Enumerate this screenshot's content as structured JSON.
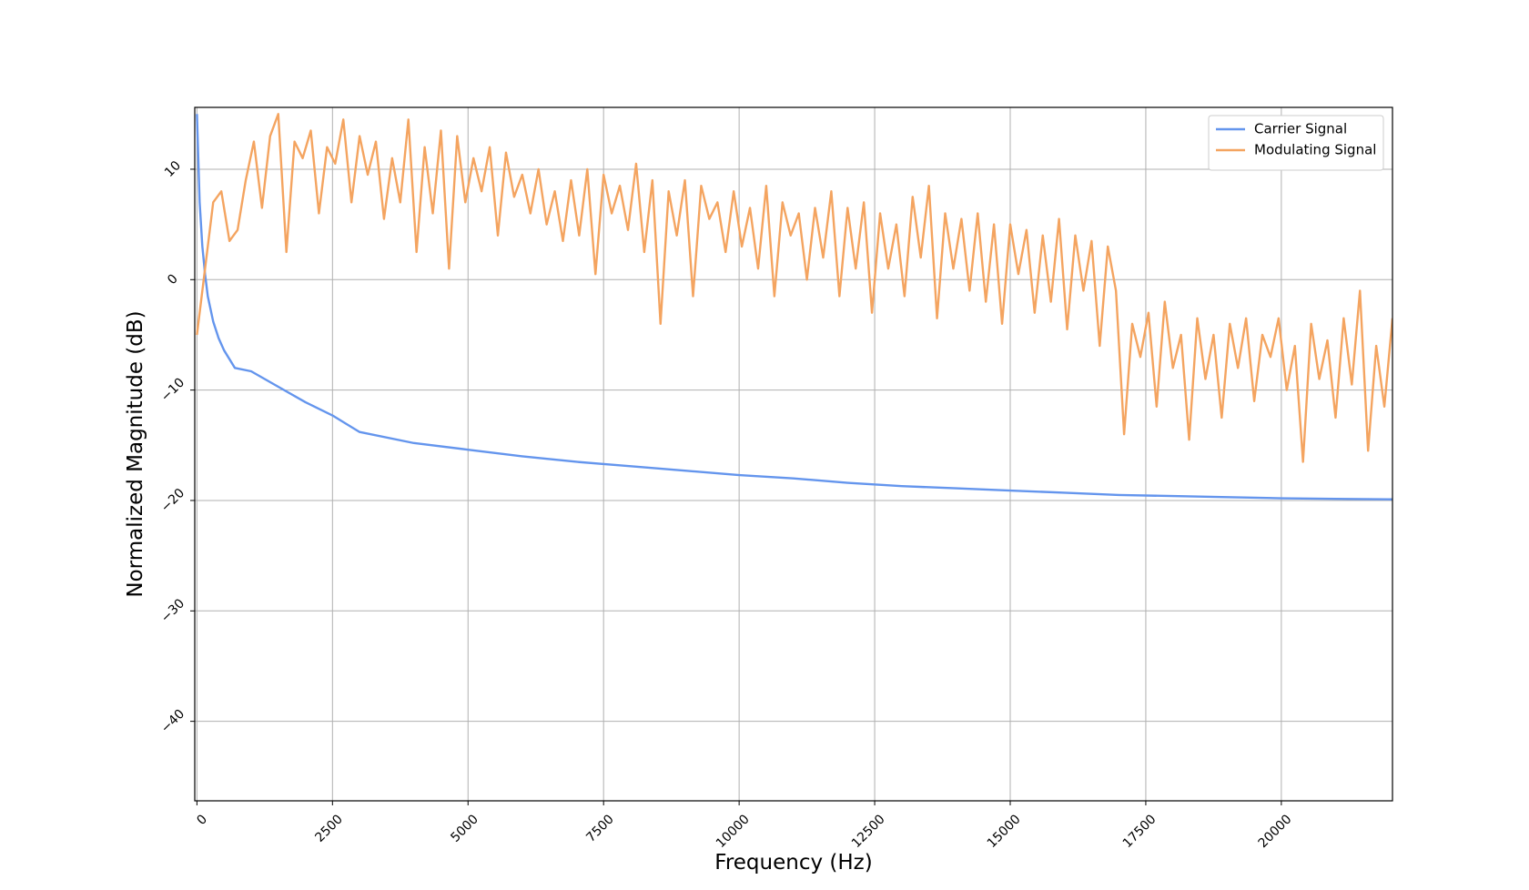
{
  "chart_data": {
    "type": "line",
    "x_label": "Frequency (Hz)",
    "y_label": "Normalized Magnitude (dB)",
    "xlim": [
      -40,
      22050
    ],
    "ylim": [
      -47.2,
      15.6
    ],
    "xticks": [
      0,
      2500,
      5000,
      7500,
      10000,
      12500,
      15000,
      17500,
      20000
    ],
    "yticks": [
      {
        "value": -40,
        "label": "−40"
      },
      {
        "value": -30,
        "label": "−30"
      },
      {
        "value": -20,
        "label": "−20"
      },
      {
        "value": -10,
        "label": "−10"
      },
      0,
      10
    ],
    "grid": true,
    "legend": "upper right",
    "series": [
      {
        "name": "Carrier Signal",
        "color": "#6495ed",
        "x": [
          0,
          50,
          100,
          150,
          200,
          300,
          400,
          500,
          700,
          1000,
          1500,
          2000,
          2500,
          3000,
          4000,
          5000,
          6000,
          7000,
          8000,
          9000,
          10000,
          11000,
          12000,
          13000,
          14000,
          15000,
          16000,
          17000,
          18000,
          19000,
          20000,
          21000,
          22050
        ],
        "values": [
          15,
          7,
          3,
          0.5,
          -1.5,
          -3.8,
          -5.3,
          -6.4,
          -8,
          -8.3,
          -9.7,
          -11.1,
          -12.3,
          -13.8,
          -14.8,
          -15.4,
          -16,
          -16.5,
          -16.9,
          -17.3,
          -17.7,
          -18,
          -18.4,
          -18.7,
          -18.9,
          -19.1,
          -19.3,
          -19.5,
          -19.6,
          -19.7,
          -19.8,
          -19.85,
          -19.9
        ]
      },
      {
        "name": "Modulating Signal",
        "color": "#f4a460",
        "x": [
          0,
          150,
          300,
          450,
          600,
          750,
          900,
          1050,
          1200,
          1350,
          1500,
          1650,
          1800,
          1950,
          2100,
          2250,
          2400,
          2550,
          2700,
          2850,
          3000,
          3150,
          3300,
          3450,
          3600,
          3750,
          3900,
          4050,
          4200,
          4350,
          4500,
          4650,
          4800,
          4950,
          5100,
          5250,
          5400,
          5550,
          5700,
          5850,
          6000,
          6150,
          6300,
          6450,
          6600,
          6750,
          6900,
          7050,
          7200,
          7350,
          7500,
          7650,
          7800,
          7950,
          8100,
          8250,
          8400,
          8550,
          8700,
          8850,
          9000,
          9150,
          9300,
          9450,
          9600,
          9750,
          9900,
          10050,
          10200,
          10350,
          10500,
          10650,
          10800,
          10950,
          11100,
          11250,
          11400,
          11550,
          11700,
          11850,
          12000,
          12150,
          12300,
          12450,
          12600,
          12750,
          12900,
          13050,
          13200,
          13350,
          13500,
          13650,
          13800,
          13950,
          14100,
          14250,
          14400,
          14550,
          14700,
          14850,
          15000,
          15150,
          15300,
          15450,
          15600,
          15750,
          15900,
          16050,
          16200,
          16350,
          16500,
          16650,
          16800,
          16950,
          17100,
          17250,
          17400,
          17550,
          17700,
          17850,
          18000,
          18150,
          18300,
          18450,
          18600,
          18750,
          18900,
          19050,
          19200,
          19350,
          19500,
          19650,
          19800,
          19950,
          20100,
          20250,
          20400,
          20550,
          20700,
          20850,
          21000,
          21150,
          21300,
          21450,
          21600,
          21750,
          21900,
          22050
        ],
        "values": [
          -5,
          1,
          7,
          8,
          3.5,
          4.5,
          9,
          12.5,
          6.5,
          13,
          15,
          2.5,
          12.5,
          11,
          13.5,
          6,
          12,
          10.5,
          14.5,
          7,
          13,
          9.5,
          12.5,
          5.5,
          11,
          7,
          14.5,
          2.5,
          12,
          6,
          13.5,
          1,
          13,
          7,
          11,
          8,
          12,
          4,
          11.5,
          7.5,
          9.5,
          6,
          10,
          5,
          8,
          3.5,
          9,
          4,
          10,
          0.5,
          9.5,
          6,
          8.5,
          4.5,
          10.5,
          2.5,
          9,
          -4,
          8,
          4,
          9,
          -1.5,
          8.5,
          5.5,
          7,
          2.5,
          8,
          3,
          6.5,
          1,
          8.5,
          -1.5,
          7,
          4,
          6,
          0,
          6.5,
          2,
          8,
          -1.5,
          6.5,
          1,
          7,
          -3,
          6,
          1,
          5,
          -1.5,
          7.5,
          2,
          8.5,
          -3.5,
          6,
          1,
          5.5,
          -1,
          6,
          -2,
          5,
          -4,
          5,
          0.5,
          4.5,
          -3,
          4,
          -2,
          5.5,
          -4.5,
          4,
          -1,
          3.5,
          -6,
          3,
          -1,
          -14,
          -4,
          -7,
          -3,
          -11.5,
          -2,
          -8,
          -5,
          -14.5,
          -3.5,
          -9,
          -5,
          -12.5,
          -4,
          -8,
          -3.5,
          -11,
          -5,
          -7,
          -3.5,
          -10,
          -6,
          -16.5,
          -4,
          -9,
          -5.5,
          -12.5,
          -3.5,
          -9.5,
          -1,
          -15.5,
          -6,
          -11.5,
          -3.5
        ]
      }
    ]
  }
}
